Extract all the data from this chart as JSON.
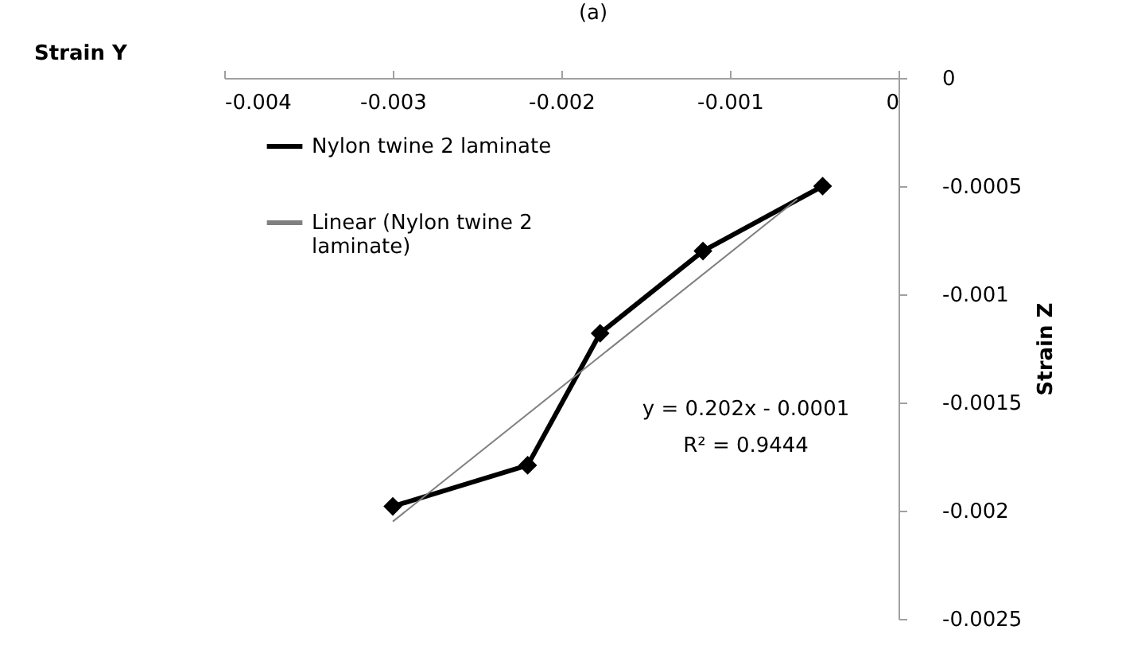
{
  "chart_data": {
    "type": "line",
    "title": "(a)",
    "xlabel": "Strain Y",
    "ylabel": "Strain Z",
    "x": [
      -0.003,
      -0.0022,
      -0.00177,
      -0.00116,
      -0.00045
    ],
    "series": [
      {
        "name": "Nylon twine 2 laminate",
        "color": "#000000",
        "values": [
          -0.00198,
          -0.00179,
          -0.00118,
          -0.0008,
          -0.0005
        ]
      },
      {
        "name": "Linear (Nylon twine 2 laminate)",
        "color": "#808080",
        "type": "line",
        "marker": "none",
        "x": [
          -0.003,
          -0.0006
        ],
        "values": [
          -0.00205,
          -0.00056
        ]
      }
    ],
    "marker": "diamond",
    "xlim": [
      -0.004,
      0
    ],
    "xticks": [
      -0.004,
      -0.003,
      -0.002,
      -0.001,
      0
    ],
    "ylim": [
      -0.0025,
      0
    ],
    "yticks": [
      0,
      -0.0005,
      -0.001,
      -0.0015,
      -0.002,
      -0.0025
    ],
    "grid": false,
    "legend": "top left",
    "annotations": [
      "y = 0.202x - 0.0001",
      "R² = 0.9444"
    ]
  }
}
